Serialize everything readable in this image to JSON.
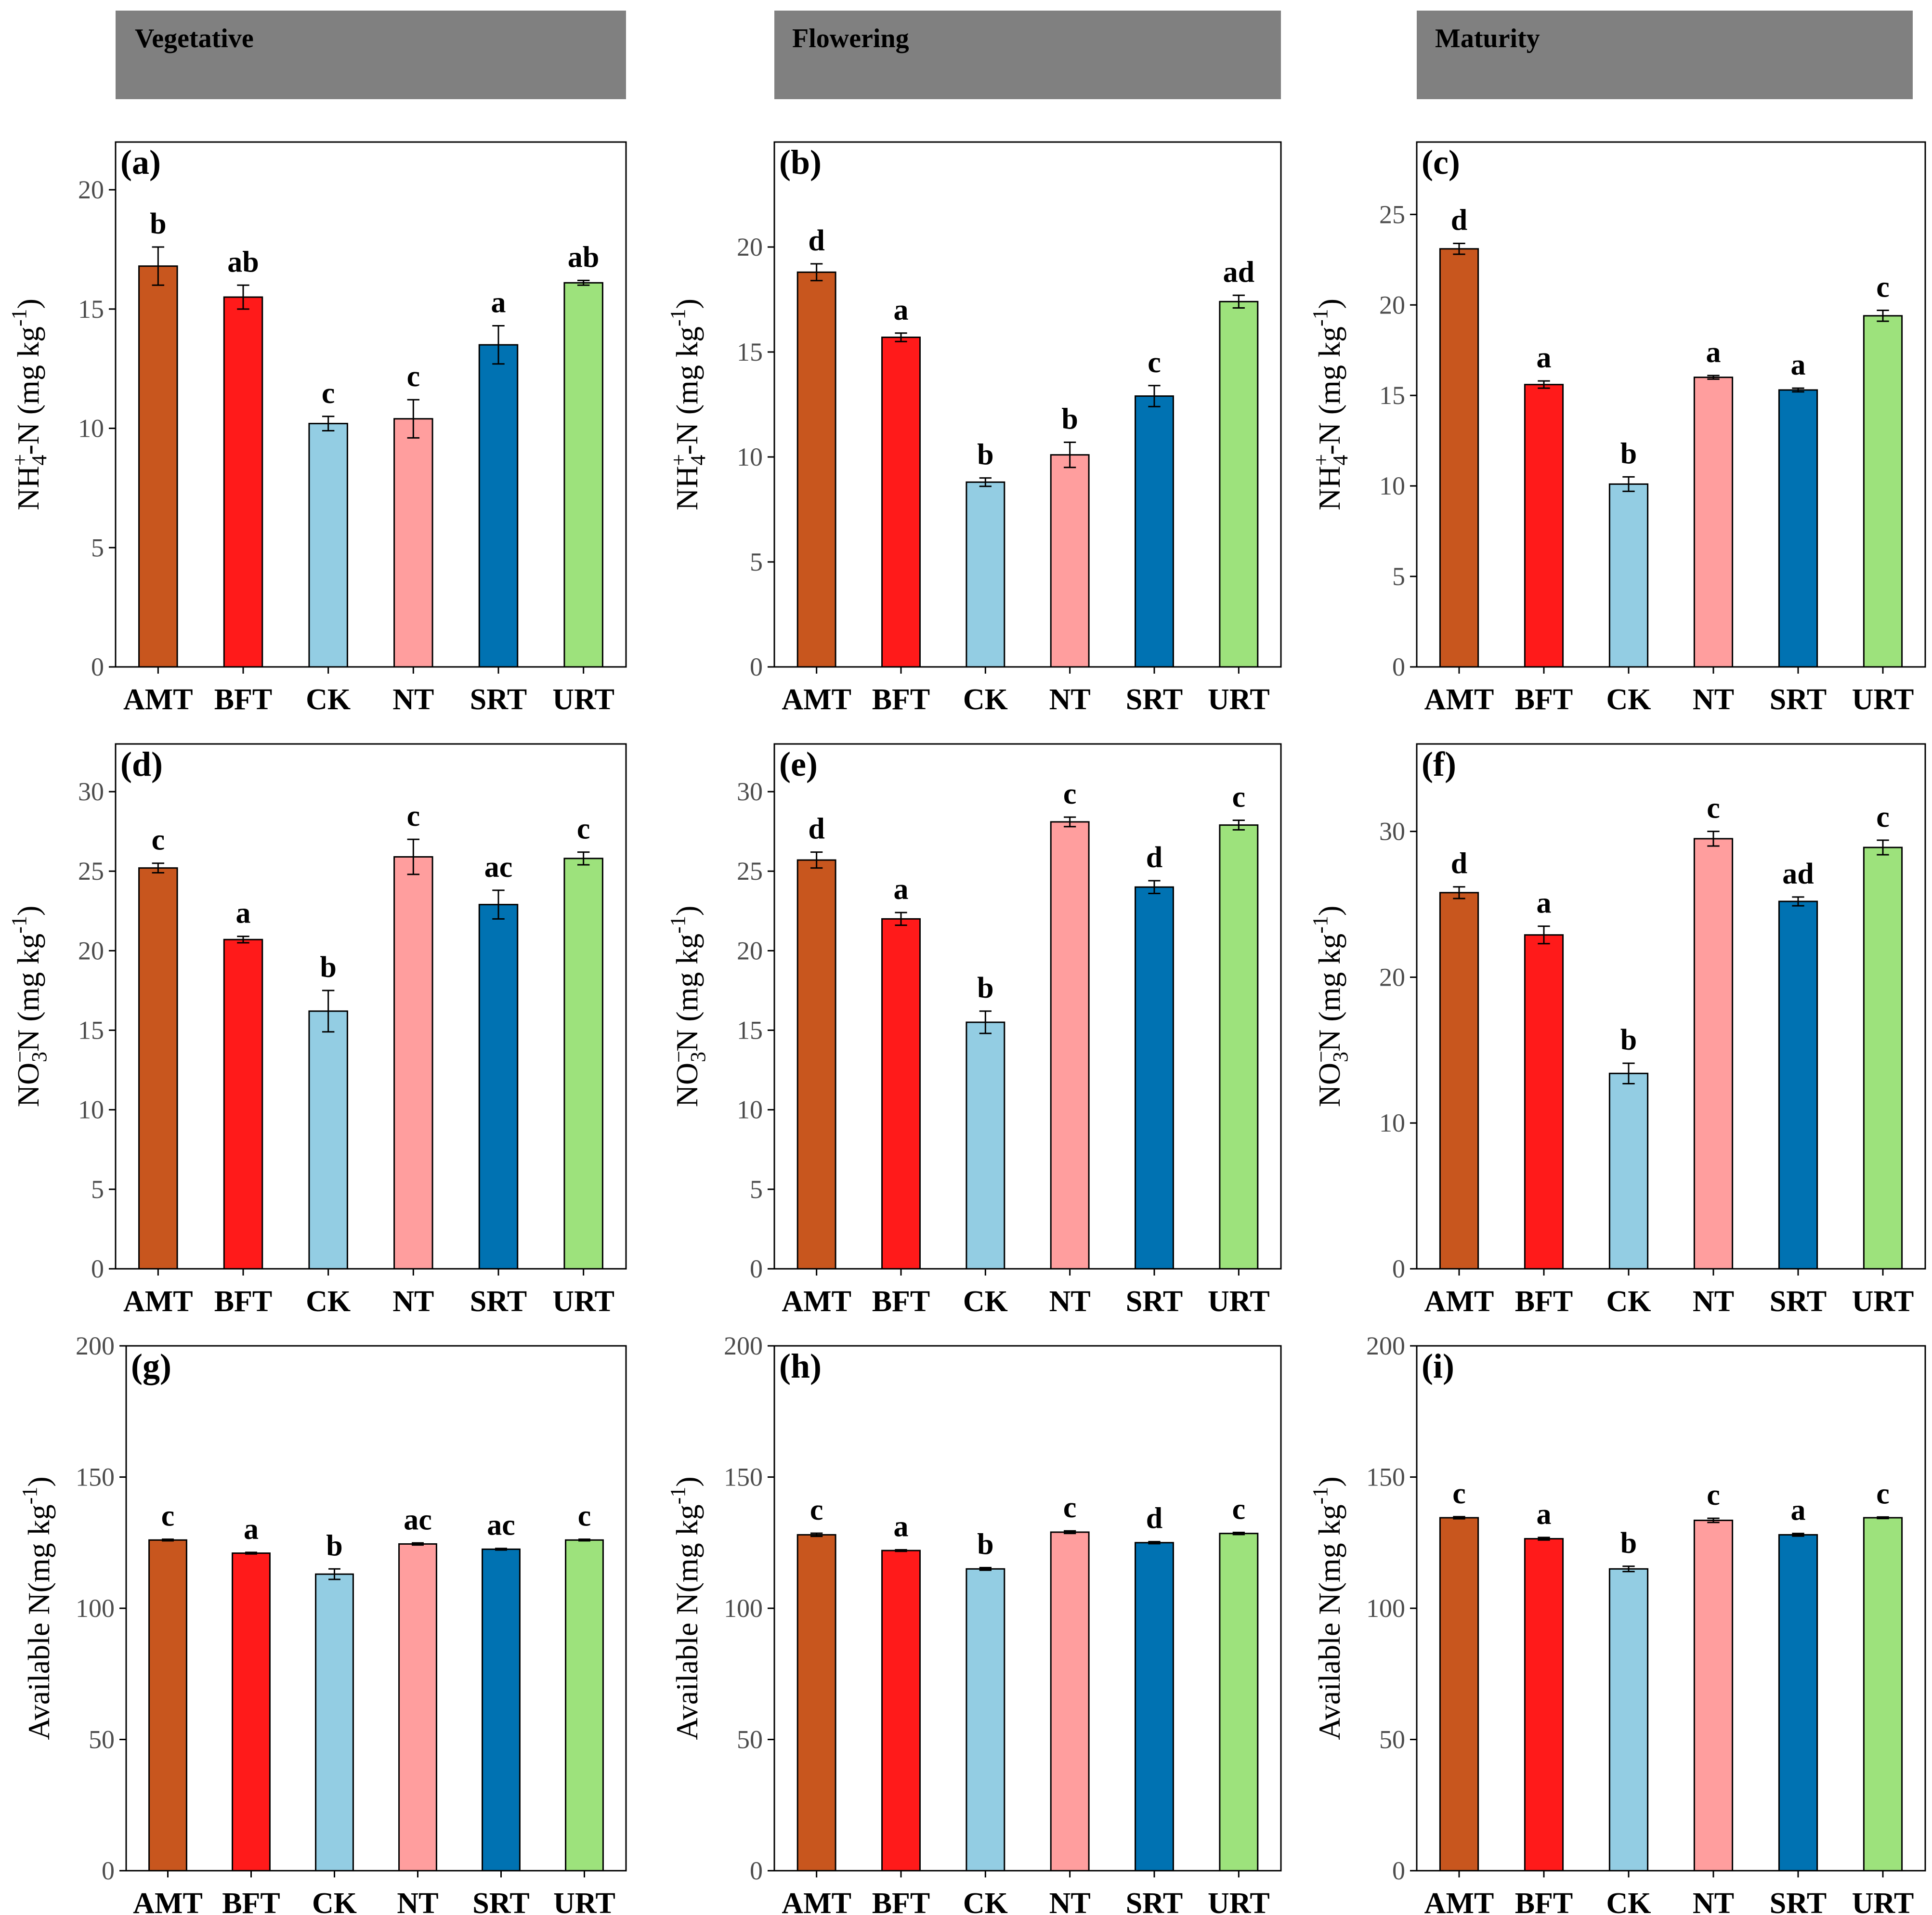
{
  "colors": {
    "AMT": "#c8561e",
    "BFT": "#ff1a1a",
    "CK": "#93cde3",
    "NT": "#ff9e9e",
    "SRT": "#0072b2",
    "URT": "#9de27c",
    "header_fill": "#808080"
  },
  "stages": [
    "Vegetative",
    "Flowering",
    "Maturity"
  ],
  "chart_data": [
    {
      "type": "bar",
      "panel": "(a)",
      "stage": "Vegetative",
      "ylabel": "NH4+-N (mg kg-1)",
      "ylabel_parts": {
        "main": "NH",
        "sub": "4",
        "sup": "+",
        "tail": "-N (mg kg",
        "unit_sup": "-1",
        "close": ")"
      },
      "ylim": [
        0,
        22
      ],
      "yticks": [
        0,
        5,
        10,
        15,
        20
      ],
      "yticks_text": [
        "0",
        "5",
        "10",
        "15",
        "20"
      ],
      "categories": [
        "AMT",
        "BFT",
        "CK",
        "NT",
        "SRT",
        "URT"
      ],
      "values": [
        16.8,
        15.5,
        10.2,
        10.4,
        13.5,
        16.1
      ],
      "errors": [
        0.8,
        0.5,
        0.3,
        0.8,
        0.8,
        0.1
      ],
      "letters": [
        "b",
        "ab",
        "c",
        "c",
        "a",
        "ab"
      ]
    },
    {
      "type": "bar",
      "panel": "(b)",
      "stage": "Flowering",
      "ylabel": "NH4+-N (mg kg-1)",
      "ylabel_parts": {
        "main": "NH",
        "sub": "4",
        "sup": "+",
        "tail": "-N (mg kg",
        "unit_sup": "-1",
        "close": ")"
      },
      "ylim": [
        0,
        25
      ],
      "yticks": [
        0,
        5,
        10,
        15,
        20
      ],
      "yticks_text": [
        "0",
        "5",
        "10",
        "15",
        "20"
      ],
      "categories": [
        "AMT",
        "BFT",
        "CK",
        "NT",
        "SRT",
        "URT"
      ],
      "values": [
        18.8,
        15.7,
        8.8,
        10.1,
        12.9,
        17.4
      ],
      "errors": [
        0.4,
        0.2,
        0.2,
        0.6,
        0.5,
        0.3
      ],
      "letters": [
        "d",
        "a",
        "b",
        "b",
        "c",
        "ad"
      ]
    },
    {
      "type": "bar",
      "panel": "(c)",
      "stage": "Maturity",
      "ylabel": "NH4+-N (mg kg-1)",
      "ylabel_parts": {
        "main": "NH",
        "sub": "4",
        "sup": "+",
        "tail": "-N (mg kg",
        "unit_sup": "-1",
        "close": ")"
      },
      "ylim": [
        0,
        29
      ],
      "yticks": [
        0,
        5,
        10,
        15,
        20,
        25
      ],
      "yticks_text": [
        "0",
        "5",
        "10",
        "15",
        "20",
        "25"
      ],
      "categories": [
        "AMT",
        "BFT",
        "CK",
        "NT",
        "SRT",
        "URT"
      ],
      "values": [
        23.1,
        15.6,
        10.1,
        16.0,
        15.3,
        19.4
      ],
      "errors": [
        0.3,
        0.2,
        0.4,
        0.1,
        0.1,
        0.3
      ],
      "letters": [
        "d",
        "a",
        "b",
        "a",
        "a",
        "c"
      ]
    },
    {
      "type": "bar",
      "panel": "(d)",
      "stage": "Vegetative",
      "ylabel": "NO3-N (mg kg-1)",
      "ylabel_parts": {
        "main": "NO",
        "sub": "3",
        "sup": "−",
        "tail": "N (mg kg",
        "unit_sup": "-1",
        "close": ")"
      },
      "ylim": [
        0,
        33
      ],
      "yticks": [
        0,
        5,
        10,
        15,
        20,
        25,
        30
      ],
      "yticks_text": [
        "0",
        "5",
        "10",
        "15",
        "20",
        "25",
        "30"
      ],
      "categories": [
        "AMT",
        "BFT",
        "CK",
        "NT",
        "SRT",
        "URT"
      ],
      "values": [
        25.2,
        20.7,
        16.2,
        25.9,
        22.9,
        25.8
      ],
      "errors": [
        0.3,
        0.2,
        1.3,
        1.1,
        0.9,
        0.4
      ],
      "letters": [
        "c",
        "a",
        "b",
        "c",
        "ac",
        "c"
      ]
    },
    {
      "type": "bar",
      "panel": "(e)",
      "stage": "Flowering",
      "ylabel": "NO3-N (mg kg-1)",
      "ylabel_parts": {
        "main": "NO",
        "sub": "3",
        "sup": "−",
        "tail": "N (mg kg",
        "unit_sup": "-1",
        "close": ")"
      },
      "ylim": [
        0,
        33
      ],
      "yticks": [
        0,
        5,
        10,
        15,
        20,
        25,
        30
      ],
      "yticks_text": [
        "0",
        "5",
        "10",
        "15",
        "20",
        "25",
        "30"
      ],
      "categories": [
        "AMT",
        "BFT",
        "CK",
        "NT",
        "SRT",
        "URT"
      ],
      "values": [
        25.7,
        22.0,
        15.5,
        28.1,
        24.0,
        27.9
      ],
      "errors": [
        0.5,
        0.4,
        0.7,
        0.3,
        0.4,
        0.3
      ],
      "letters": [
        "d",
        "a",
        "b",
        "c",
        "d",
        "c"
      ]
    },
    {
      "type": "bar",
      "panel": "(f)",
      "stage": "Maturity",
      "ylabel": "NO3-N (mg kg-1)",
      "ylabel_parts": {
        "main": "NO",
        "sub": "3",
        "sup": "−",
        "tail": "N (mg kg",
        "unit_sup": "-1",
        "close": ")"
      },
      "ylim": [
        0,
        36
      ],
      "yticks": [
        0,
        10,
        20,
        30
      ],
      "yticks_text": [
        "0",
        "10",
        "20",
        "30"
      ],
      "categories": [
        "AMT",
        "BFT",
        "CK",
        "NT",
        "SRT",
        "URT"
      ],
      "values": [
        25.8,
        22.9,
        13.4,
        29.5,
        25.2,
        28.9
      ],
      "errors": [
        0.4,
        0.6,
        0.7,
        0.5,
        0.3,
        0.5
      ],
      "letters": [
        "d",
        "a",
        "b",
        "c",
        "ad",
        "c"
      ]
    },
    {
      "type": "bar",
      "panel": "(g)",
      "stage": "Vegetative",
      "ylabel": "Available N(mg kg-1)",
      "ylabel_parts": {
        "main": "Available N(mg kg",
        "sub": "",
        "sup": "",
        "tail": "",
        "unit_sup": "-1",
        "close": ")"
      },
      "ylim": [
        0,
        200
      ],
      "yticks": [
        0,
        50,
        100,
        150,
        200
      ],
      "yticks_text": [
        "0",
        "50",
        "100",
        "150",
        "200"
      ],
      "categories": [
        "AMT",
        "BFT",
        "CK",
        "NT",
        "SRT",
        "URT"
      ],
      "values": [
        126.0,
        121.0,
        113.0,
        124.5,
        122.5,
        126.0
      ],
      "errors": [
        0.3,
        0.3,
        2.0,
        0.4,
        0.3,
        0.3
      ],
      "letters": [
        "c",
        "a",
        "b",
        "ac",
        "ac",
        "c"
      ]
    },
    {
      "type": "bar",
      "panel": "(h)",
      "stage": "Flowering",
      "ylabel": "Available N(mg kg-1)",
      "ylabel_parts": {
        "main": "Available N(mg kg",
        "sub": "",
        "sup": "",
        "tail": "",
        "unit_sup": "-1",
        "close": ")"
      },
      "ylim": [
        0,
        200
      ],
      "yticks": [
        0,
        50,
        100,
        150,
        200
      ],
      "yticks_text": [
        "0",
        "50",
        "100",
        "150",
        "200"
      ],
      "categories": [
        "AMT",
        "BFT",
        "CK",
        "NT",
        "SRT",
        "URT"
      ],
      "values": [
        128.0,
        122.0,
        115.0,
        129.0,
        125.0,
        128.5
      ],
      "errors": [
        0.6,
        0.3,
        0.5,
        0.5,
        0.4,
        0.4
      ],
      "letters": [
        "c",
        "a",
        "b",
        "c",
        "d",
        "c"
      ]
    },
    {
      "type": "bar",
      "panel": "(i)",
      "stage": "Maturity",
      "ylabel": "Available N(mg kg-1)",
      "ylabel_parts": {
        "main": "Available N(mg kg",
        "sub": "",
        "sup": "",
        "tail": "",
        "unit_sup": "-1",
        "close": ")"
      },
      "ylim": [
        0,
        200
      ],
      "yticks": [
        0,
        50,
        100,
        150,
        200
      ],
      "yticks_text": [
        "0",
        "50",
        "100",
        "150",
        "200"
      ],
      "categories": [
        "AMT",
        "BFT",
        "CK",
        "NT",
        "SRT",
        "URT"
      ],
      "values": [
        134.5,
        126.5,
        115.0,
        133.5,
        128.0,
        134.5
      ],
      "errors": [
        0.4,
        0.5,
        1.0,
        0.8,
        0.5,
        0.3
      ],
      "letters": [
        "c",
        "a",
        "b",
        "c",
        "a",
        "c"
      ]
    }
  ]
}
